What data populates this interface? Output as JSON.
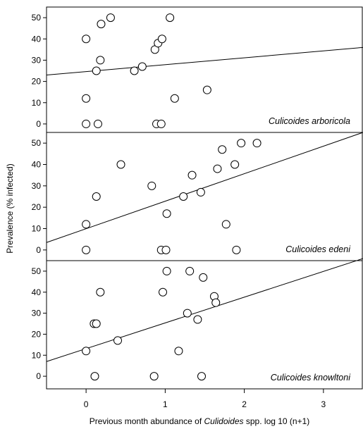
{
  "chart_data": {
    "type": "scatter",
    "xlabel_prefix": "Previous month abundance of ",
    "xlabel_italic": "Culidoides",
    "xlabel_suffix": " spp. log 10 (n+1)",
    "ylabel": "Prevalence (% infected)",
    "xlim": [
      -0.5,
      3.5
    ],
    "x_ticks": [
      0,
      1,
      2,
      3
    ],
    "y_ticks": [
      0,
      10,
      20,
      30,
      40,
      50
    ],
    "grid": false,
    "panels": [
      {
        "name": "Culicoides arboricola",
        "ylim": [
          -4,
          55
        ],
        "points": [
          {
            "x": 0.0,
            "y": 40
          },
          {
            "x": 0.0,
            "y": 12
          },
          {
            "x": 0.0,
            "y": 0
          },
          {
            "x": 0.13,
            "y": 25
          },
          {
            "x": 0.15,
            "y": 0
          },
          {
            "x": 0.18,
            "y": 30
          },
          {
            "x": 0.19,
            "y": 47
          },
          {
            "x": 0.31,
            "y": 50
          },
          {
            "x": 0.61,
            "y": 25
          },
          {
            "x": 0.71,
            "y": 27
          },
          {
            "x": 0.87,
            "y": 35
          },
          {
            "x": 0.89,
            "y": 0
          },
          {
            "x": 0.91,
            "y": 38
          },
          {
            "x": 0.95,
            "y": 0
          },
          {
            "x": 0.96,
            "y": 40
          },
          {
            "x": 1.06,
            "y": 50
          },
          {
            "x": 1.12,
            "y": 12
          },
          {
            "x": 1.53,
            "y": 16
          }
        ],
        "regression": {
          "x": [
            -0.5,
            3.5
          ],
          "y": [
            23,
            36
          ]
        }
      },
      {
        "name": "Culicoides edeni",
        "ylim": [
          -5,
          55
        ],
        "points": [
          {
            "x": 0.0,
            "y": 12
          },
          {
            "x": 0.0,
            "y": 0
          },
          {
            "x": 0.13,
            "y": 25
          },
          {
            "x": 0.44,
            "y": 40
          },
          {
            "x": 0.83,
            "y": 30
          },
          {
            "x": 0.95,
            "y": 0
          },
          {
            "x": 1.01,
            "y": 0
          },
          {
            "x": 1.02,
            "y": 17
          },
          {
            "x": 1.23,
            "y": 25
          },
          {
            "x": 1.34,
            "y": 35
          },
          {
            "x": 1.45,
            "y": 27
          },
          {
            "x": 1.66,
            "y": 38
          },
          {
            "x": 1.72,
            "y": 47
          },
          {
            "x": 1.77,
            "y": 12
          },
          {
            "x": 1.88,
            "y": 40
          },
          {
            "x": 1.9,
            "y": 0
          },
          {
            "x": 1.96,
            "y": 50
          },
          {
            "x": 2.16,
            "y": 50
          }
        ],
        "regression": {
          "x": [
            -0.5,
            3.5
          ],
          "y": [
            3.5,
            55
          ]
        }
      },
      {
        "name": "Culicoides knowltoni",
        "ylim": [
          -6,
          55
        ],
        "points": [
          {
            "x": 0.0,
            "y": 12
          },
          {
            "x": 0.1,
            "y": 25
          },
          {
            "x": 0.11,
            "y": 0
          },
          {
            "x": 0.13,
            "y": 25
          },
          {
            "x": 0.18,
            "y": 40
          },
          {
            "x": 0.4,
            "y": 17
          },
          {
            "x": 0.86,
            "y": 0
          },
          {
            "x": 0.97,
            "y": 40
          },
          {
            "x": 1.02,
            "y": 50
          },
          {
            "x": 1.17,
            "y": 12
          },
          {
            "x": 1.28,
            "y": 30
          },
          {
            "x": 1.31,
            "y": 50
          },
          {
            "x": 1.41,
            "y": 27
          },
          {
            "x": 1.46,
            "y": 0
          },
          {
            "x": 1.48,
            "y": 47
          },
          {
            "x": 1.62,
            "y": 38
          },
          {
            "x": 1.64,
            "y": 35
          }
        ],
        "regression": {
          "x": [
            -0.5,
            3.5
          ],
          "y": [
            7,
            56
          ]
        }
      }
    ]
  }
}
